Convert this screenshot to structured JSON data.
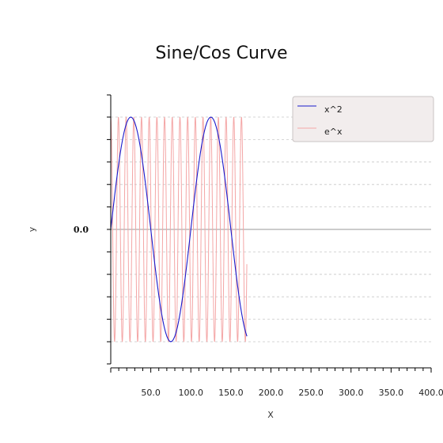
{
  "chart_data": {
    "type": "line",
    "title": "Sine/Cos Curve",
    "xlabel": "X",
    "ylabel": "y",
    "xlim": [
      0,
      400
    ],
    "ylim": [
      -1.2,
      1.2
    ],
    "x_ticks": [
      {
        "value": 50,
        "label": "50.0"
      },
      {
        "value": 100,
        "label": "100.0"
      },
      {
        "value": 150,
        "label": "150.0"
      },
      {
        "value": 200,
        "label": "200.0"
      },
      {
        "value": 250,
        "label": "250.0"
      },
      {
        "value": 300,
        "label": "300.0"
      },
      {
        "value": 350,
        "label": "350.0"
      },
      {
        "value": 400,
        "label": "400.0"
      }
    ],
    "y_ticks": [
      {
        "value": 0,
        "label": "0.0"
      }
    ],
    "grid": "horizontal-dashed",
    "legend_position": "top-right",
    "series": [
      {
        "name": "x^2",
        "color": "#1a1acc",
        "function": "sin",
        "amplitude": 1.0,
        "period": 100,
        "x_range": [
          0,
          170
        ]
      },
      {
        "name": "e^x",
        "color": "#f4a6a6",
        "function": "cos",
        "amplitude": 1.0,
        "period": 9.6,
        "x_range": [
          0,
          170
        ]
      }
    ]
  }
}
